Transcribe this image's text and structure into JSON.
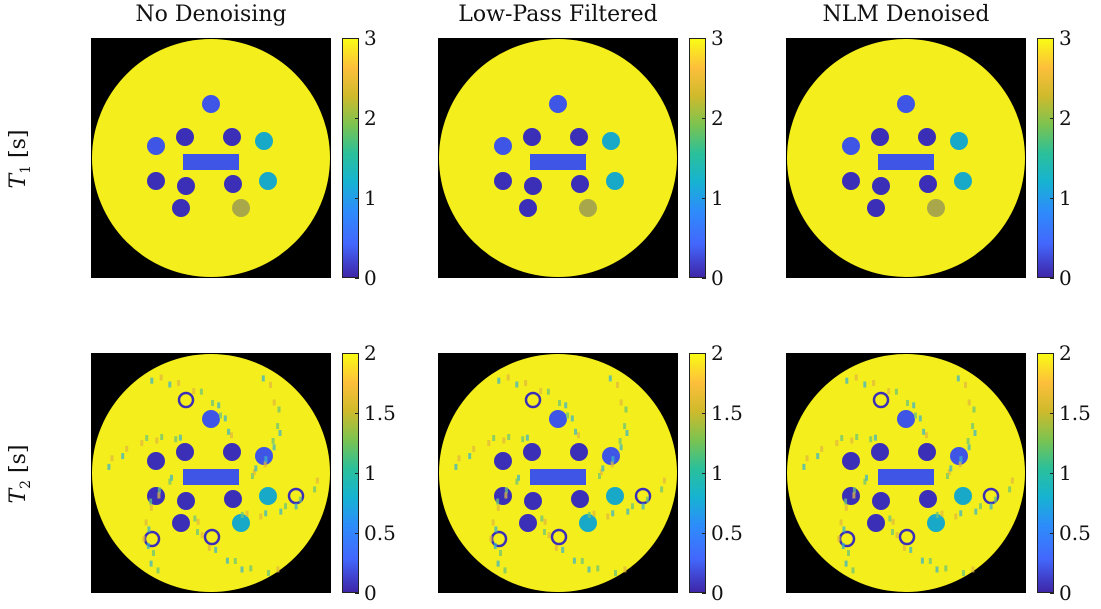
{
  "columns": [
    {
      "title": "No Denoising"
    },
    {
      "title": "Low-Pass Filtered"
    },
    {
      "title": "NLM Denoised"
    }
  ],
  "rows": [
    {
      "label_symbol": "T",
      "label_subscript": "1",
      "label_unit": "[s]",
      "colorbar_ticks": [
        "3",
        "2",
        "1",
        "0"
      ],
      "range": [
        0,
        3
      ]
    },
    {
      "label_symbol": "T",
      "label_subscript": "2",
      "label_unit": "[s]",
      "colorbar_ticks": [
        "2",
        "1.5",
        "1",
        "0.5",
        "0"
      ],
      "range": [
        0,
        2
      ]
    }
  ],
  "colormap": "parula",
  "colors": {
    "background": "#ffffff",
    "image_background": "#000000",
    "phantom_fill": "#f4ee1c",
    "vial_dark": "#3b2fb8",
    "vial_blue": "#3f55e6",
    "vial_cyan": "#18a9c9",
    "vial_olive": "#a8a84a"
  }
}
